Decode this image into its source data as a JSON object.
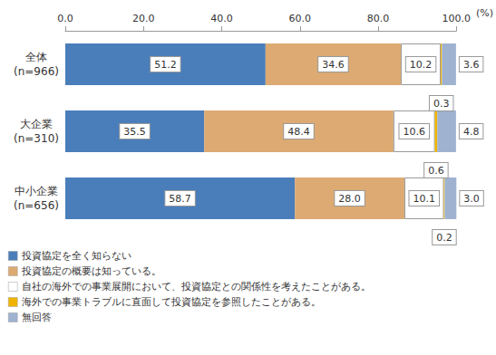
{
  "chart_data": {
    "type": "bar",
    "orientation": "horizontal",
    "stacked": true,
    "data_labels": true,
    "grid": false,
    "legend": "bottom-left",
    "xlabel": "(%)",
    "categories": [
      "全体\n(n=966)",
      "大企業\n(n=310)",
      "中小企業\n(n=656)"
    ],
    "xlim": [
      0,
      100
    ],
    "xticks": [
      {
        "value": 0,
        "label": "0.0"
      },
      {
        "value": 20,
        "label": "20.0"
      },
      {
        "value": 40,
        "label": "40.0"
      },
      {
        "value": 60,
        "label": "60.0"
      },
      {
        "value": 80,
        "label": "80.0"
      },
      {
        "value": 100,
        "label": "100.0"
      }
    ],
    "series": [
      {
        "name": "投資協定を全く知らない",
        "color": "#4a7ebb",
        "values": [
          51.2,
          35.5,
          58.7
        ],
        "value_labels": [
          "51.2",
          "35.5",
          "58.7"
        ]
      },
      {
        "name": "投資協定の概要は知っている。",
        "color": "#dcaa72",
        "values": [
          34.6,
          48.4,
          28.0
        ],
        "value_labels": [
          "34.6",
          "48.4",
          "28.0"
        ]
      },
      {
        "name": "自社の海外での事業展開において、投資協定との関係性を考えたことがある。",
        "color": "#ffffff",
        "values": [
          10.2,
          10.6,
          10.1
        ],
        "value_labels": [
          "10.2",
          "10.6",
          "10.1"
        ]
      },
      {
        "name": "海外での事業トラブルに直面して投資協定を参照したことがある。",
        "color": "#f0b400",
        "values": [
          0.3,
          0.6,
          0.2
        ],
        "value_labels": [
          "0.3",
          "0.6",
          "0.2"
        ]
      },
      {
        "name": "無回答",
        "color": "#9fb3d1",
        "values": [
          3.6,
          4.8,
          3.0
        ],
        "value_labels": [
          "3.6",
          "4.8",
          "3.0"
        ]
      }
    ]
  }
}
